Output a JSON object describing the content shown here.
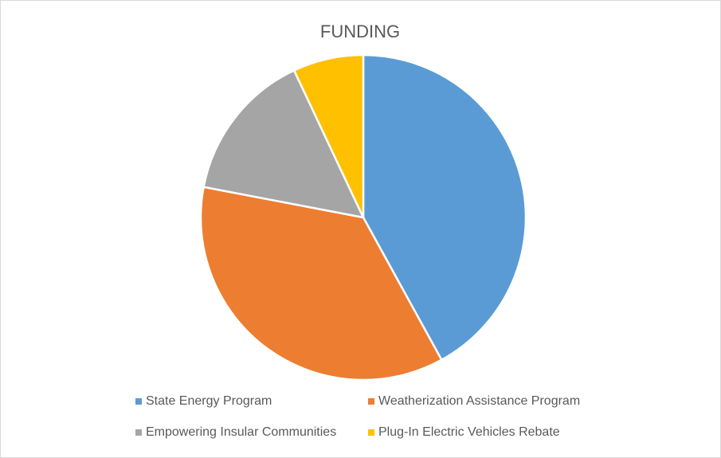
{
  "chart_data": {
    "type": "pie",
    "title": "FUNDING",
    "categories": [
      "State Energy Program",
      "Weatherization Assistance Program",
      "Empowering Insular Communities",
      "Plug-In Electric Vehicles Rebate"
    ],
    "values": [
      42,
      36,
      15,
      7
    ],
    "colors": [
      "#5b9bd5",
      "#ed7d31",
      "#a5a5a5",
      "#ffc000"
    ],
    "legend": "bottom"
  }
}
